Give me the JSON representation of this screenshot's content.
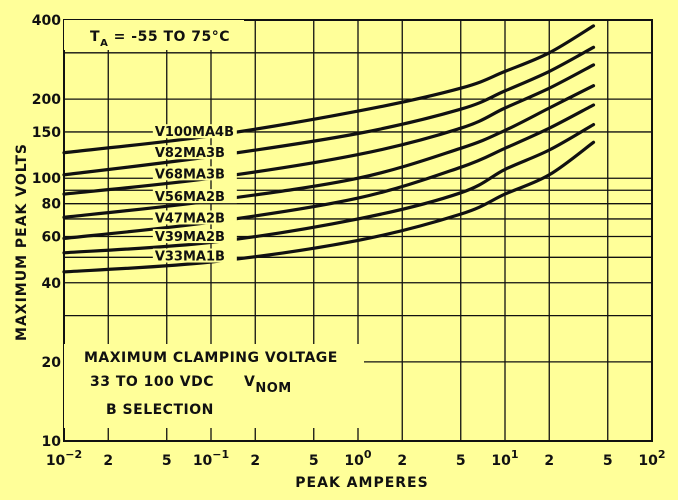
{
  "chart_data": {
    "type": "line",
    "xscale": "log",
    "yscale": "log",
    "xlim": [
      0.01,
      100
    ],
    "ylim": [
      10,
      400
    ],
    "xlabel": "PEAK AMPERES",
    "ylabel": "MAXIMUM PEAK VOLTS",
    "grid": true,
    "x_tick_labels": [
      "10−2",
      "2",
      "5",
      "10−1",
      "2",
      "5",
      "100",
      "2",
      "5",
      "101",
      "2",
      "5",
      "102"
    ],
    "x_tick_values": [
      0.01,
      0.02,
      0.05,
      0.1,
      0.2,
      0.5,
      1,
      2,
      5,
      10,
      20,
      50,
      100
    ],
    "y_tick_labels": [
      "10",
      "20",
      "40",
      "60",
      "80",
      "100",
      "150",
      "200",
      "400"
    ],
    "y_tick_values": [
      10,
      20,
      40,
      60,
      80,
      100,
      150,
      200,
      400
    ],
    "annotations": {
      "temperature": "TA = -55 TO 75°C",
      "clamping_line1": "MAXIMUM CLAMPING VOLTAGE",
      "clamping_line2": "33 TO 100 VDC",
      "clamping_line3": "B SELECTION",
      "vnom": "VNOM"
    },
    "series": [
      {
        "name": "V100MA4B",
        "x": [
          0.01,
          0.1,
          1,
          5,
          10,
          20,
          40
        ],
        "y": [
          125,
          145,
          180,
          220,
          255,
          300,
          380
        ]
      },
      {
        "name": "V82MA3B",
        "x": [
          0.01,
          0.1,
          1,
          5,
          10,
          20,
          40
        ],
        "y": [
          103,
          121,
          148,
          183,
          215,
          255,
          315
        ]
      },
      {
        "name": "V68MA3B",
        "x": [
          0.01,
          0.1,
          1,
          5,
          10,
          20,
          40
        ],
        "y": [
          87,
          100,
          123,
          155,
          185,
          220,
          270
        ]
      },
      {
        "name": "V56MA2B",
        "x": [
          0.01,
          0.1,
          1,
          5,
          10,
          20,
          40
        ],
        "y": [
          71,
          82,
          100,
          130,
          152,
          185,
          225
        ]
      },
      {
        "name": "V47MA2B",
        "x": [
          0.01,
          0.1,
          1,
          5,
          10,
          20,
          40
        ],
        "y": [
          59,
          68,
          84,
          110,
          130,
          155,
          190
        ]
      },
      {
        "name": "V39MA2B",
        "x": [
          0.01,
          0.1,
          1,
          5,
          10,
          20,
          40
        ],
        "y": [
          52,
          57,
          70,
          88,
          108,
          128,
          160
        ]
      },
      {
        "name": "V33MA1B",
        "x": [
          0.01,
          0.1,
          1,
          5,
          10,
          20,
          40
        ],
        "y": [
          44,
          48,
          58,
          73,
          87,
          103,
          137
        ]
      }
    ],
    "series_label_x": 0.055,
    "colors": {
      "background": "#ffff99",
      "ink": "#111111"
    }
  }
}
